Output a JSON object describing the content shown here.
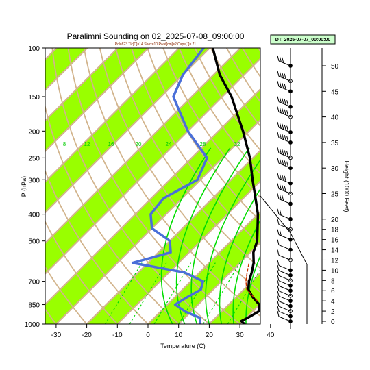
{
  "chart_data": {
    "type": "line",
    "title": "Paralimni Sounding on 02_2025-07-08_09:00:00",
    "subtitle": "Pcl=823 Tlc[C]=14 Shox=10 Pwat[cm]=2 Cape[J]= 71",
    "datetime_box": "DT: 2025-07-07_00:00:00",
    "xlabel": "Temperature (C)",
    "ylabel": "P (hPa)",
    "y2label": "Height (1000 Feet)",
    "x_ticks": [
      "-30",
      "-20",
      "-10",
      "0",
      "10",
      "20",
      "30",
      "40"
    ],
    "x_tick_values": [
      -30,
      -20,
      -10,
      0,
      10,
      20,
      30,
      40
    ],
    "y_ticks": [
      "100",
      "150",
      "200",
      "250",
      "300",
      "400",
      "500",
      "700",
      "850",
      "1000"
    ],
    "y_tick_values": [
      100,
      150,
      200,
      250,
      300,
      400,
      500,
      700,
      850,
      1000
    ],
    "y2_ticks": [
      "0",
      "2",
      "4",
      "6",
      "8",
      "10",
      "12",
      "14",
      "16",
      "18",
      "20",
      "25",
      "30",
      "35",
      "40",
      "45",
      "50"
    ],
    "y2_tick_values": [
      0,
      2,
      4,
      6,
      8,
      10,
      12,
      14,
      16,
      18,
      20,
      25,
      30,
      35,
      40,
      45,
      50
    ],
    "xlim": [
      -33,
      42
    ],
    "ylim": [
      1000,
      100
    ],
    "skew": "skew-T log-p",
    "mixing_ratio_labels": [
      "8",
      "12",
      "16",
      "20",
      "24",
      "28",
      "32"
    ],
    "temperature_label_isotherms": [
      "-30",
      "-20",
      "-10",
      "0",
      "10",
      "20",
      "30"
    ],
    "series": [
      {
        "name": "Temperature",
        "color": "#000000",
        "points": [
          [
            1000,
            31.5
          ],
          [
            975,
            29.5
          ],
          [
            950,
            30.5
          ],
          [
            900,
            32
          ],
          [
            850,
            30
          ],
          [
            800,
            25.5
          ],
          [
            750,
            21.5
          ],
          [
            700,
            19
          ],
          [
            650,
            17
          ],
          [
            600,
            14.5
          ],
          [
            550,
            11
          ],
          [
            500,
            8.5
          ],
          [
            450,
            4.5
          ],
          [
            400,
            0
          ],
          [
            350,
            -6
          ],
          [
            300,
            -13
          ],
          [
            250,
            -21
          ],
          [
            200,
            -32
          ],
          [
            150,
            -47
          ],
          [
            125,
            -58
          ],
          [
            100,
            -69
          ]
        ]
      },
      {
        "name": "Dewpoint",
        "color": "#4a6fd8",
        "points": [
          [
            1000,
            17
          ],
          [
            950,
            15
          ],
          [
            900,
            8
          ],
          [
            850,
            2.5
          ],
          [
            800,
            4
          ],
          [
            750,
            6
          ],
          [
            700,
            4
          ],
          [
            650,
            -5
          ],
          [
            600,
            -25
          ],
          [
            550,
            -16
          ],
          [
            500,
            -20
          ],
          [
            450,
            -30
          ],
          [
            400,
            -35
          ],
          [
            350,
            -36
          ],
          [
            300,
            -31
          ],
          [
            250,
            -35
          ],
          [
            200,
            -50
          ],
          [
            150,
            -66
          ],
          [
            125,
            -70
          ],
          [
            100,
            -72
          ]
        ]
      },
      {
        "name": "Parcel",
        "color": "#cc3300",
        "points": [
          [
            823,
            28
          ],
          [
            750,
            21
          ],
          [
            700,
            18
          ],
          [
            650,
            15.5
          ],
          [
            600,
            13
          ]
        ]
      }
    ],
    "band_colors": {
      "green": "#99ff00",
      "white": "#ffffff",
      "isotherm": "#d2b48c"
    },
    "mixing_ratio_color": "#00dd00",
    "wind_profile_heights_kft": [
      0,
      1,
      2,
      3,
      4,
      5,
      6,
      7,
      8,
      9,
      10,
      12,
      14,
      16,
      18,
      20,
      23,
      25,
      27,
      30,
      32,
      35,
      37,
      40,
      42,
      45,
      47,
      50
    ],
    "wind_speeds_kt": [
      5,
      10,
      10,
      10,
      10,
      10,
      10,
      10,
      10,
      10,
      10,
      10,
      10,
      15,
      10,
      20,
      30,
      40,
      40,
      50,
      50,
      50,
      50,
      50,
      50,
      40,
      35,
      30
    ]
  }
}
